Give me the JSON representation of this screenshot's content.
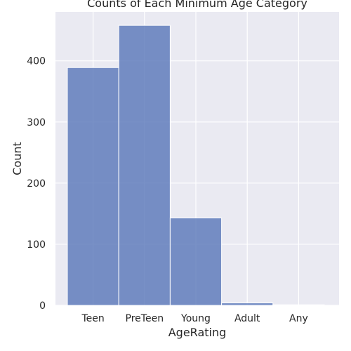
{
  "chart_data": {
    "type": "bar",
    "title": "Counts of Each Minimum Age Category",
    "xlabel": "AgeRating",
    "ylabel": "Count",
    "categories": [
      "Teen",
      "PreTeen",
      "Young",
      "Adult",
      "Any"
    ],
    "values": [
      389,
      458,
      143,
      4,
      1
    ],
    "ylim": [
      0,
      480
    ],
    "yticks": [
      0,
      100,
      200,
      300,
      400
    ],
    "grid": true,
    "colors": {
      "bar": "#5876b8",
      "bar_edge": "#ffffff",
      "background": "#eaeaf2",
      "grid": "#ffffff",
      "text": "#262626"
    }
  }
}
